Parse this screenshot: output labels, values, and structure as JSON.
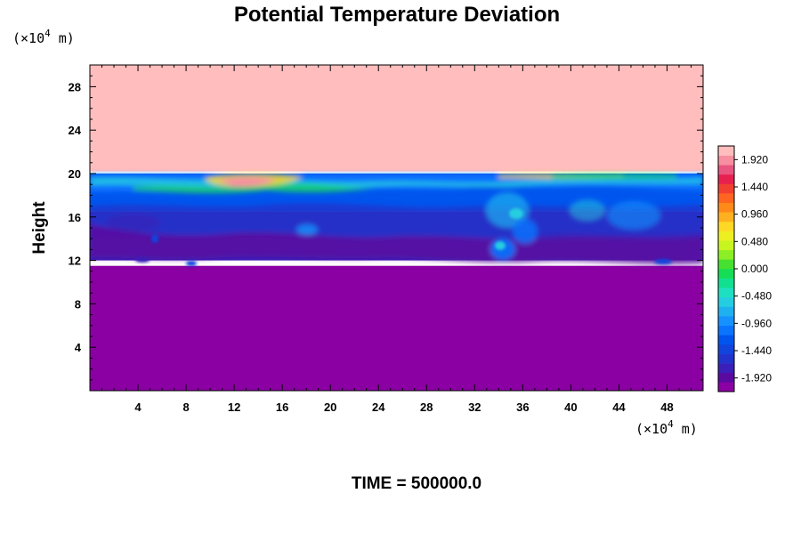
{
  "chart_data": {
    "type": "heatmap",
    "title": "Potential Temperature Deviation",
    "ylabel": "Height",
    "xlabel": "",
    "x_unit_prefix": "(×10",
    "x_unit_exp": "4",
    "x_unit_suffix": " m)",
    "y_unit_prefix": "(×10",
    "y_unit_exp": "4",
    "y_unit_suffix": " m)",
    "xlim": [
      0,
      51
    ],
    "ylim": [
      0,
      30
    ],
    "x_ticks": [
      4,
      8,
      12,
      16,
      20,
      24,
      28,
      32,
      36,
      40,
      44,
      48
    ],
    "y_ticks": [
      4,
      8,
      12,
      16,
      20,
      24,
      28
    ],
    "colorbar": {
      "range": [
        -2.16,
        2.16
      ],
      "tick_values": [
        1.92,
        1.44,
        0.96,
        0.48,
        0.0,
        -0.48,
        -0.96,
        -1.44,
        -1.92
      ],
      "tick_labels": [
        "1.920",
        "1.440",
        "0.960",
        "0.480",
        "0.000",
        "-0.480",
        "-0.960",
        "-1.440",
        "-1.920"
      ],
      "colors": [
        "#8b00a3",
        "#5a0aa0",
        "#3a1fb8",
        "#2233cc",
        "#1144dd",
        "#0055ee",
        "#0a74ff",
        "#1592ff",
        "#1fb0f0",
        "#25cde0",
        "#1ee0c0",
        "#10e090",
        "#15dd55",
        "#45e030",
        "#8cee25",
        "#c8f420",
        "#ecef20",
        "#ffd825",
        "#ffb020",
        "#ff8a1a",
        "#ff6520",
        "#f24030",
        "#e82050",
        "#e85580",
        "#f78fa0",
        "#ffbdbd"
      ]
    },
    "field_regions": [
      {
        "level": "background",
        "value": -2.1,
        "y_from": 0,
        "y_to": 11.5
      },
      {
        "level": "stratosphere",
        "value": 2.1,
        "y_from": 20.2,
        "y_to": 30
      },
      {
        "level": "upper_troposphere_band",
        "value": -1.2,
        "y_from": 16.5,
        "y_to": 20
      },
      {
        "level": "mid_troposphere",
        "value": -1.7,
        "y_from": 12,
        "y_to": 16.5
      }
    ],
    "time_label": "TIME = 500000.0"
  }
}
